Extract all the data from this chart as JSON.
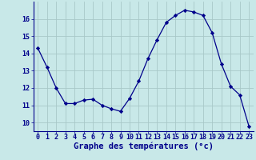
{
  "hours": [
    0,
    1,
    2,
    3,
    4,
    5,
    6,
    7,
    8,
    9,
    10,
    11,
    12,
    13,
    14,
    15,
    16,
    17,
    18,
    19,
    20,
    21,
    22,
    23
  ],
  "temps": [
    14.3,
    13.2,
    12.0,
    11.1,
    11.1,
    11.3,
    11.35,
    11.0,
    10.8,
    10.65,
    11.4,
    12.4,
    13.7,
    14.8,
    15.8,
    16.2,
    16.5,
    16.4,
    16.2,
    15.2,
    13.4,
    12.1,
    11.6,
    9.8
  ],
  "line_color": "#00008B",
  "marker": "D",
  "marker_size": 2.2,
  "bg_color": "#C8E8E8",
  "grid_color": "#A8C8C8",
  "axis_color": "#00008B",
  "xlabel": "Graphe des températures (°c)",
  "xlabel_fontsize": 7.5,
  "ylim": [
    9.5,
    17.0
  ],
  "yticks": [
    10,
    11,
    12,
    13,
    14,
    15,
    16
  ],
  "xticks": [
    0,
    1,
    2,
    3,
    4,
    5,
    6,
    7,
    8,
    9,
    10,
    11,
    12,
    13,
    14,
    15,
    16,
    17,
    18,
    19,
    20,
    21,
    22,
    23
  ],
  "tick_fontsize": 6.0,
  "xlim": [
    -0.5,
    23.5
  ]
}
